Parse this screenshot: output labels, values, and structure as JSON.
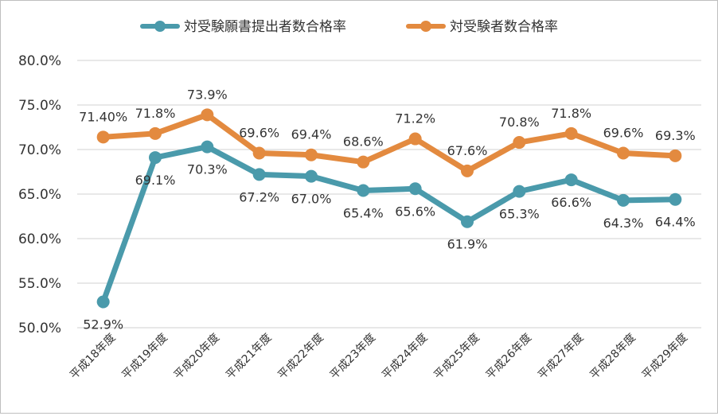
{
  "chart_data": {
    "type": "line",
    "title": "",
    "xlabel": "",
    "ylabel": "",
    "ylim": [
      0.5,
      0.8
    ],
    "y_tick_labels": [
      "50.0%",
      "55.0%",
      "60.0%",
      "65.0%",
      "70.0%",
      "75.0%",
      "80.0%"
    ],
    "grid": true,
    "legend_position": "top",
    "categories": [
      "平成18年度",
      "平成19年度",
      "平成20年度",
      "平成21年度",
      "平成22年度",
      "平成23年度",
      "平成24年度",
      "平成25年度",
      "平成26年度",
      "平成27年度",
      "平成28年度",
      "平成29年度"
    ],
    "series": [
      {
        "name": "対受験願書提出者数合格率",
        "color": "#4a9aab",
        "values": [
          0.529,
          0.691,
          0.703,
          0.672,
          0.67,
          0.654,
          0.656,
          0.619,
          0.653,
          0.666,
          0.643,
          0.644
        ],
        "labels": [
          "52.9%",
          "69.1%",
          "70.3%",
          "67.2%",
          "67.0%",
          "65.4%",
          "65.6%",
          "61.9%",
          "65.3%",
          "66.6%",
          "64.3%",
          "64.4%"
        ],
        "label_position": "below"
      },
      {
        "name": "対受験者数合格率",
        "color": "#e38a3f",
        "values": [
          0.714,
          0.718,
          0.739,
          0.696,
          0.694,
          0.686,
          0.712,
          0.676,
          0.708,
          0.718,
          0.696,
          0.693
        ],
        "labels": [
          "71.40%",
          "71.8%",
          "73.9%",
          "69.6%",
          "69.4%",
          "68.6%",
          "71.2%",
          "67.6%",
          "70.8%",
          "71.8%",
          "69.6%",
          "69.3%"
        ],
        "label_position": "above"
      }
    ]
  }
}
